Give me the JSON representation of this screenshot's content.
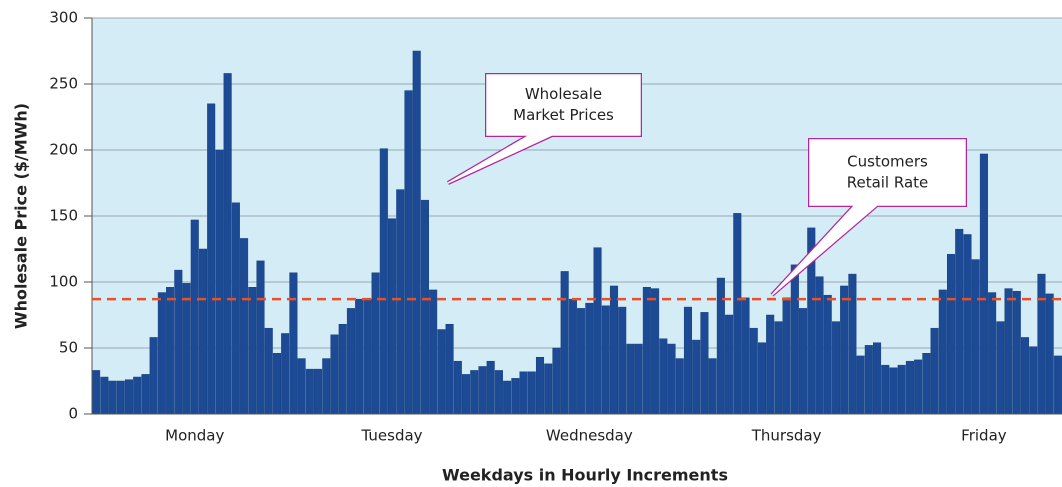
{
  "chart_data": {
    "type": "bar",
    "x_label": "Weekdays in Hourly Increments",
    "y_label": "Wholesale Price ($/MWh)",
    "categories": [
      null,
      null,
      null,
      null,
      null,
      null,
      null,
      null,
      null,
      null,
      null,
      null,
      "Monday",
      null,
      null,
      null,
      null,
      null,
      null,
      null,
      null,
      null,
      null,
      null,
      null,
      null,
      null,
      null,
      null,
      null,
      null,
      null,
      null,
      null,
      null,
      null,
      "Tuesday",
      null,
      null,
      null,
      null,
      null,
      null,
      null,
      null,
      null,
      null,
      null,
      null,
      null,
      null,
      null,
      null,
      null,
      null,
      null,
      null,
      null,
      null,
      null,
      "Wednesday",
      null,
      null,
      null,
      null,
      null,
      null,
      null,
      null,
      null,
      null,
      null,
      null,
      null,
      null,
      null,
      null,
      null,
      null,
      null,
      null,
      null,
      null,
      null,
      "Thursday",
      null,
      null,
      null,
      null,
      null,
      null,
      null,
      null,
      null,
      null,
      null,
      null,
      null,
      null,
      null,
      null,
      null,
      null,
      null,
      null,
      null,
      null,
      null,
      "Friday",
      null,
      null,
      null,
      null,
      null,
      null,
      null,
      null,
      null
    ],
    "values": [
      33,
      28,
      25,
      25,
      26,
      28,
      30,
      58,
      92,
      96,
      109,
      99,
      147,
      125,
      235,
      200,
      258,
      160,
      133,
      96,
      116,
      65,
      46,
      61,
      107,
      42,
      34,
      34,
      42,
      60,
      68,
      80,
      87,
      87,
      107,
      201,
      148,
      170,
      245,
      275,
      162,
      94,
      64,
      68,
      40,
      30,
      33,
      36,
      40,
      33,
      25,
      27,
      32,
      32,
      43,
      38,
      50,
      108,
      87,
      80,
      84,
      126,
      82,
      97,
      81,
      53,
      53,
      96,
      95,
      57,
      53,
      42,
      81,
      56,
      77,
      42,
      103,
      75,
      152,
      88,
      65,
      54,
      75,
      70,
      88,
      113,
      80,
      141,
      104,
      90,
      70,
      97,
      106,
      44,
      52,
      54,
      37,
      35,
      37,
      40,
      41,
      46,
      65,
      94,
      121,
      140,
      136,
      117,
      197,
      92,
      70,
      95,
      93,
      58,
      51,
      106,
      91,
      44
    ],
    "color": "#1d4a94",
    "reference_line": {
      "value": 87,
      "color": "#e8502a"
    },
    "annotations": [
      {
        "lines": [
          "Wholesale",
          "Market Prices"
        ]
      },
      {
        "lines": [
          "Customers",
          "Retail Rate"
        ]
      }
    ],
    "ylim": [
      0,
      300
    ],
    "yticks": [
      0,
      50,
      100,
      150,
      200,
      250,
      300
    ],
    "grid": true
  }
}
